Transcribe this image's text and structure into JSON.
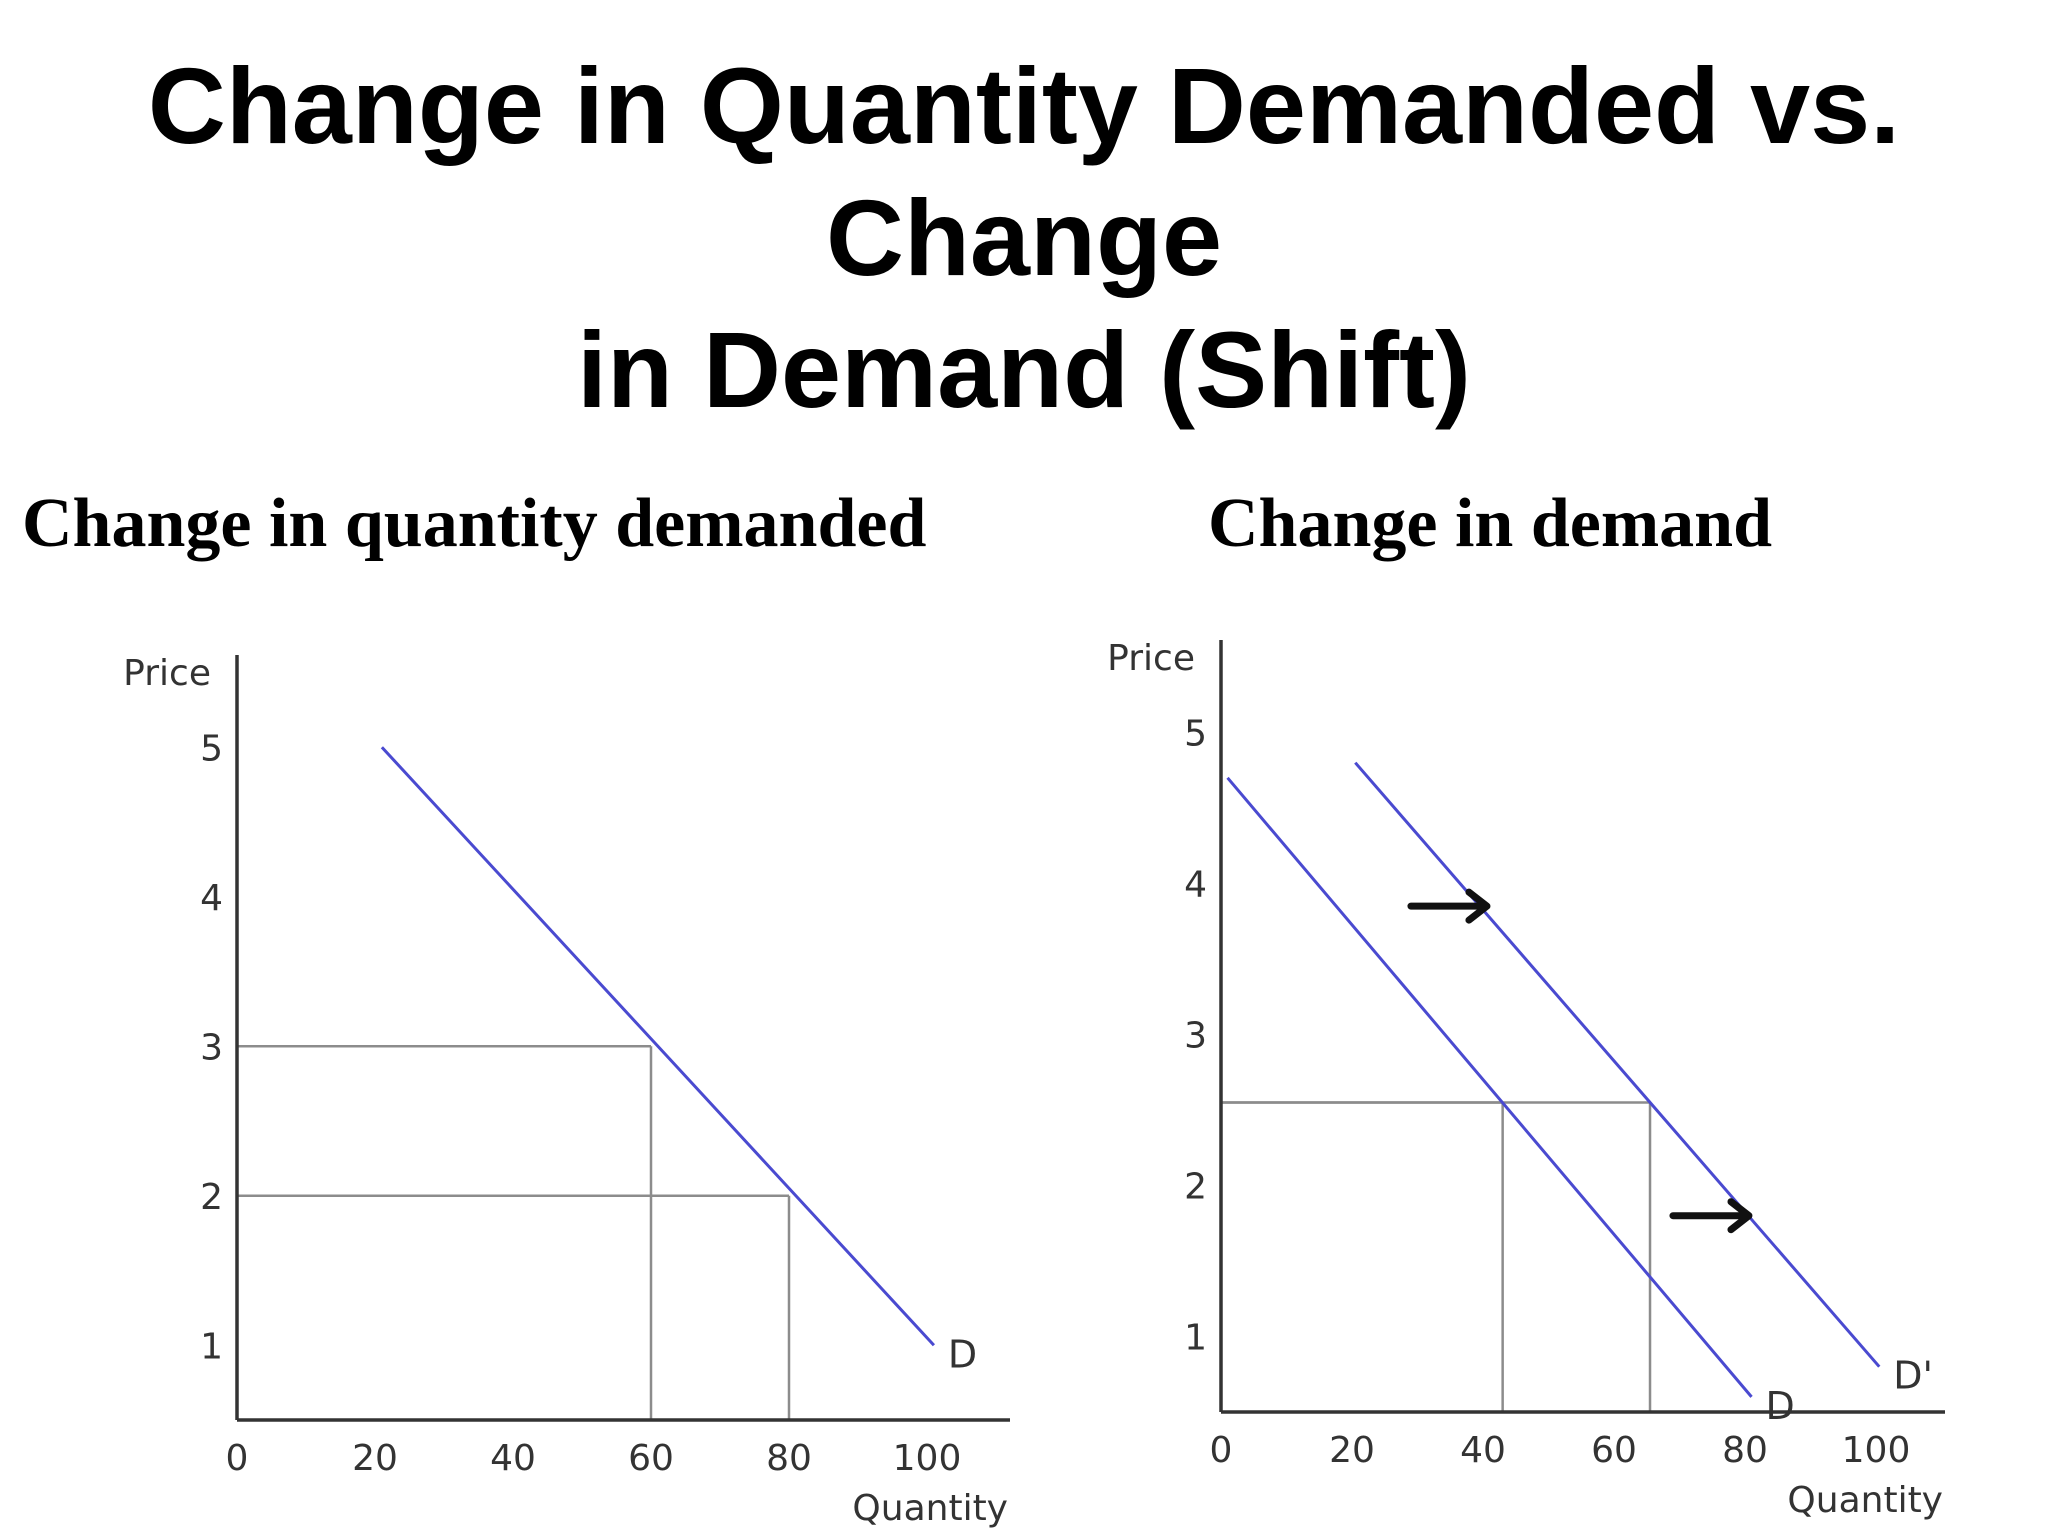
{
  "slide": {
    "title_line1": "Change in Quantity Demanded vs. Change",
    "title_line2": "in Demand (Shift)"
  },
  "colors": {
    "curve": "#4a4ad0",
    "axis": "#333333",
    "guide": "#8c8c8c",
    "arrow": "#111111"
  },
  "chart_data": [
    {
      "type": "line",
      "title": "Change in quantity demanded",
      "xlabel": "Quantity",
      "ylabel": "Price",
      "xlim": [
        0,
        112
      ],
      "ylim": [
        0.5,
        5.5
      ],
      "x_ticks": [
        0,
        20,
        40,
        60,
        80,
        100
      ],
      "y_ticks": [
        1,
        2,
        3,
        4,
        5
      ],
      "grid": false,
      "series": [
        {
          "name": "D",
          "x": [
            21,
            101
          ],
          "y": [
            5,
            1
          ]
        }
      ],
      "guides": [
        {
          "x": 60,
          "y": 3
        },
        {
          "x": 80,
          "y": 2
        }
      ],
      "arrows": []
    },
    {
      "type": "line",
      "title": "Change in demand",
      "xlabel": "Quantity",
      "ylabel": "Price",
      "xlim": [
        0,
        112
      ],
      "ylim": [
        0.5,
        5.5
      ],
      "x_ticks": [
        0,
        20,
        40,
        60,
        80,
        100
      ],
      "y_ticks": [
        1,
        2,
        3,
        4,
        5
      ],
      "grid": false,
      "series": [
        {
          "name": "D",
          "x": [
            1,
            81
          ],
          "y": [
            4.7,
            0.6
          ]
        },
        {
          "name": "D'",
          "x": [
            20.5,
            100.5
          ],
          "y": [
            4.8,
            0.8
          ]
        }
      ],
      "guides": [
        {
          "x": 43,
          "y": 2.55
        },
        {
          "x": 65.5,
          "y": 2.55
        }
      ],
      "arrows": [
        {
          "x": 29,
          "y": 3.85
        },
        {
          "x": 69,
          "y": 1.8
        }
      ]
    }
  ]
}
